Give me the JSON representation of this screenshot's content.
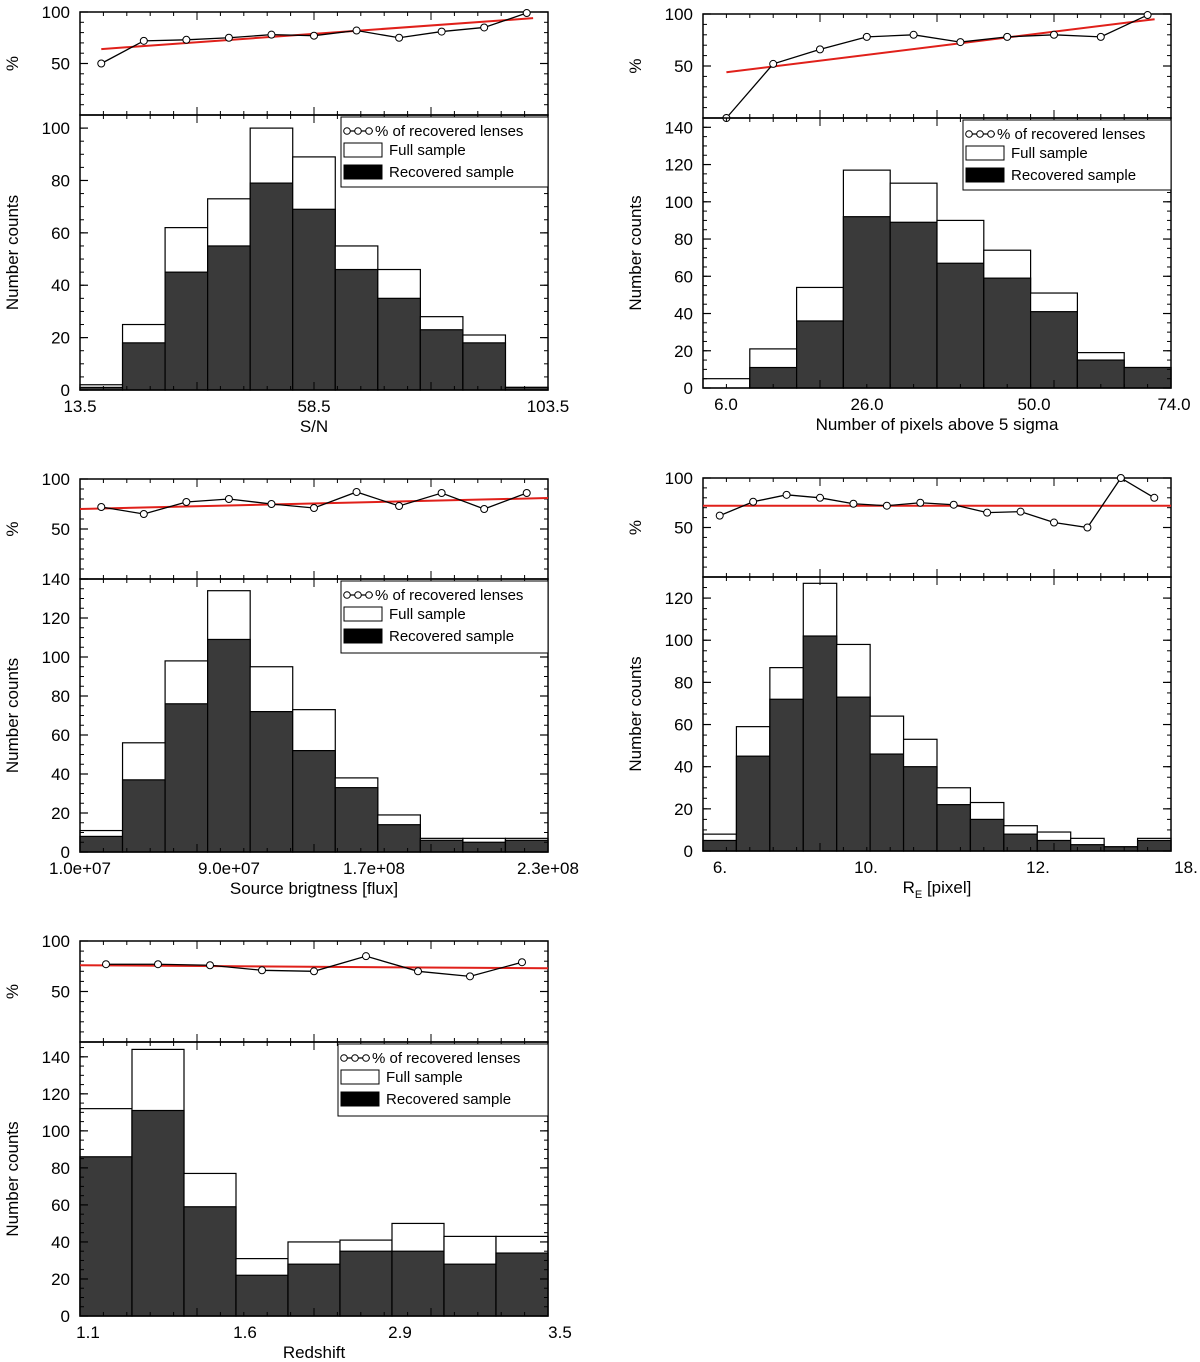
{
  "legend": {
    "pct": "% of recovered lenses",
    "full": "Full sample",
    "rec": "Recovered sample"
  },
  "colors": {
    "recovered": "#3a3a3a",
    "full": "#ffffff",
    "fit": "#e0201a",
    "line": "#000000"
  },
  "chart_data": [
    {
      "type": "bar",
      "id": "sn",
      "xlabel": "S/N",
      "ylabel": "Number counts",
      "pct_label": "%",
      "bar_ylim": [
        0,
        105
      ],
      "bar_yticks": [
        0,
        20,
        40,
        60,
        80,
        100
      ],
      "pct_ylim": [
        0,
        100
      ],
      "pct_yticks": [
        50,
        100
      ],
      "xtick_labels": [
        "13.5",
        "58.5",
        "103.5"
      ],
      "full_sample": [
        2,
        25,
        62,
        73,
        100,
        89,
        55,
        46,
        28,
        21,
        1
      ],
      "recovered_sample": [
        1,
        18,
        45,
        55,
        79,
        69,
        46,
        35,
        23,
        18,
        1
      ],
      "percent_recovered": [
        50,
        72,
        73,
        75,
        78,
        77,
        82,
        75,
        81,
        85,
        99
      ],
      "fit_line": [
        64,
        94
      ]
    },
    {
      "type": "bar",
      "id": "pixels",
      "xlabel": "Number of pixels above 5 sigma",
      "ylabel": "Number counts",
      "pct_label": "%",
      "bar_ylim": [
        0,
        145
      ],
      "bar_yticks": [
        0,
        20,
        40,
        60,
        80,
        100,
        120,
        140
      ],
      "pct_ylim": [
        0,
        100
      ],
      "pct_yticks": [
        50,
        100
      ],
      "xtick_labels": [
        "6.0",
        "26.0",
        "50.0",
        "74.0"
      ],
      "full_sample": [
        5,
        21,
        54,
        117,
        110,
        90,
        74,
        51,
        19,
        11
      ],
      "recovered_sample": [
        0,
        11,
        36,
        92,
        89,
        67,
        59,
        41,
        15,
        11
      ],
      "percent_recovered": [
        0,
        52,
        66,
        78,
        80,
        73,
        78,
        80,
        78,
        99
      ],
      "fit_line": [
        44,
        95
      ]
    },
    {
      "type": "bar",
      "id": "brightness",
      "xlabel": "Source  brigtness [flux]",
      "ylabel": "Number counts",
      "pct_label": "%",
      "bar_ylim": [
        0,
        140
      ],
      "bar_yticks": [
        0,
        20,
        40,
        60,
        80,
        100,
        120,
        140
      ],
      "pct_ylim": [
        0,
        100
      ],
      "pct_yticks": [
        50,
        100
      ],
      "xtick_labels": [
        "1.0e+07",
        "9.0e+07",
        "1.7e+08",
        "2.3e+08"
      ],
      "full_sample": [
        11,
        56,
        98,
        134,
        95,
        73,
        38,
        19,
        7,
        7,
        7
      ],
      "recovered_sample": [
        8,
        37,
        76,
        109,
        72,
        52,
        33,
        14,
        6,
        5,
        6
      ],
      "percent_recovered": [
        72,
        65,
        77,
        80,
        75,
        71,
        87,
        73,
        86,
        70,
        86
      ],
      "fit_line": [
        70,
        81
      ]
    },
    {
      "type": "bar",
      "id": "einstein_radius",
      "xlabel": "R_E [pixel]",
      "ylabel": "Number counts",
      "pct_label": "%",
      "bar_ylim": [
        0,
        130
      ],
      "bar_yticks": [
        0,
        20,
        40,
        60,
        80,
        100,
        120
      ],
      "pct_ylim": [
        0,
        100
      ],
      "pct_yticks": [
        50,
        100
      ],
      "xtick_labels": [
        "6.",
        "10.",
        "12.",
        "18."
      ],
      "full_sample": [
        8,
        59,
        87,
        127,
        98,
        64,
        53,
        30,
        23,
        12,
        9,
        6,
        2,
        6
      ],
      "recovered_sample": [
        5,
        45,
        72,
        102,
        73,
        46,
        40,
        22,
        15,
        8,
        5,
        3,
        2,
        5
      ],
      "percent_recovered": [
        62,
        76,
        83,
        80,
        74,
        72,
        75,
        73,
        65,
        66,
        55,
        50,
        100,
        80
      ],
      "fit_line": [
        72,
        72
      ]
    },
    {
      "type": "bar",
      "id": "redshift",
      "xlabel": "Redshift",
      "ylabel": "Number counts",
      "pct_label": "%",
      "bar_ylim": [
        0,
        148
      ],
      "bar_yticks": [
        0,
        20,
        40,
        60,
        80,
        100,
        120,
        140
      ],
      "pct_ylim": [
        0,
        100
      ],
      "pct_yticks": [
        50,
        100
      ],
      "xtick_labels": [
        "1.1",
        "1.6",
        "2.9",
        "3.5"
      ],
      "full_sample": [
        112,
        144,
        77,
        31,
        40,
        41,
        50,
        43,
        43
      ],
      "recovered_sample": [
        86,
        111,
        59,
        22,
        28,
        35,
        35,
        28,
        34
      ],
      "percent_recovered": [
        77,
        77,
        76,
        71,
        70,
        85,
        70,
        65,
        79
      ],
      "fit_line": [
        76,
        73
      ]
    }
  ]
}
